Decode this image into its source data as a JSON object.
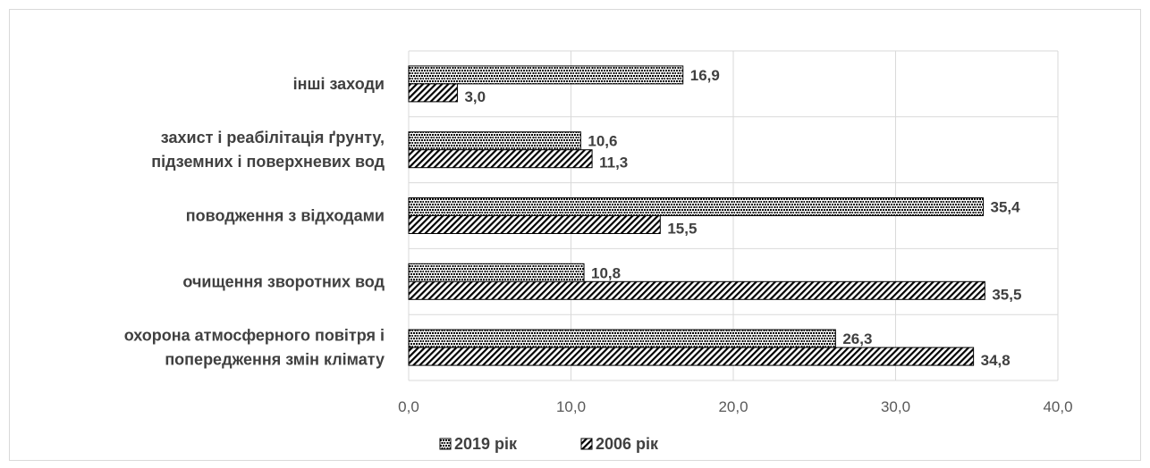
{
  "chart_data": {
    "type": "bar",
    "orientation": "horizontal",
    "categories": [
      [
        "охорона атмосферного повітря і",
        "попередження змін клімату"
      ],
      [
        "очищення зворотних вод"
      ],
      [
        "поводження з відходами"
      ],
      [
        "захист і реабілітація ґрунту,",
        "підземних  і поверхневих вод"
      ],
      [
        "інші заходи"
      ]
    ],
    "series": [
      {
        "name": "2019 рік",
        "values": [
          26.3,
          10.8,
          35.4,
          10.6,
          16.9
        ],
        "labels": [
          "26,3",
          "10,8",
          "35,4",
          "10,6",
          "16,9"
        ],
        "pattern": "dots"
      },
      {
        "name": "2006 рік",
        "values": [
          34.8,
          35.5,
          15.5,
          11.3,
          3.0
        ],
        "labels": [
          "34,8",
          "35,5",
          "15,5",
          "11,3",
          "3,0"
        ],
        "pattern": "diagonal"
      }
    ],
    "xlim": [
      0,
      40
    ],
    "xticks": [
      0,
      10,
      20,
      30,
      40
    ],
    "xtick_labels": [
      "0,0",
      "10,0",
      "20,0",
      "30,0",
      "40,0"
    ],
    "grid": true,
    "legend_position": "bottom",
    "title": "",
    "xlabel": "",
    "ylabel": ""
  }
}
